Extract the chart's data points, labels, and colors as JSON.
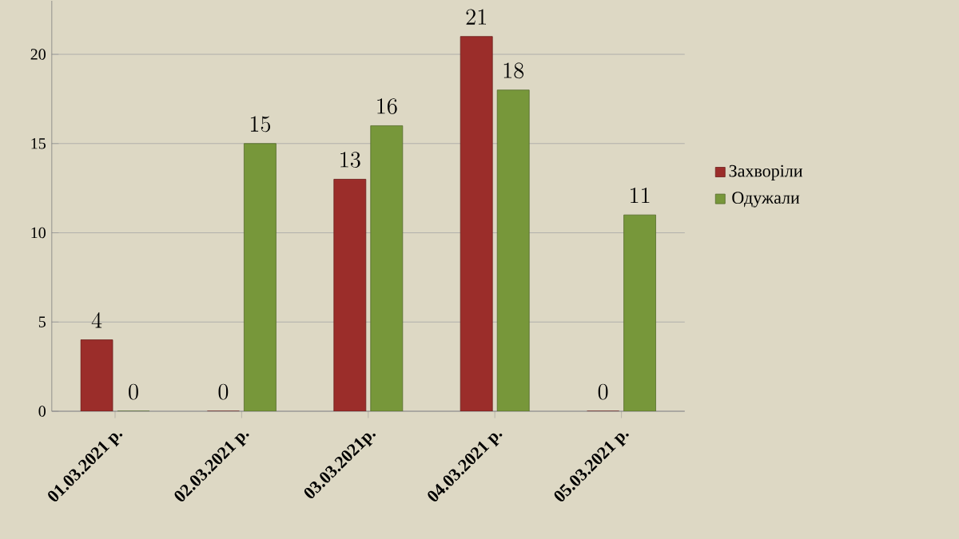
{
  "chart_data": {
    "type": "bar",
    "categories": [
      "01.03.2021 р.",
      "02.03.2021 р.",
      "03.03.2021р.",
      "04.03.2021 р.",
      "05.03.2021 р."
    ],
    "series": [
      {
        "name": "Захворіли",
        "color": "#9b2d2a",
        "values": [
          4,
          0,
          13,
          21,
          0
        ]
      },
      {
        "name": "Одужали",
        "color": "#77973a",
        "values": [
          0,
          15,
          16,
          18,
          11
        ]
      }
    ],
    "ylim": [
      0,
      23
    ],
    "yticks": [
      0,
      5,
      10,
      15,
      20
    ],
    "grid": "y",
    "legend": "right",
    "data_labels": true
  }
}
